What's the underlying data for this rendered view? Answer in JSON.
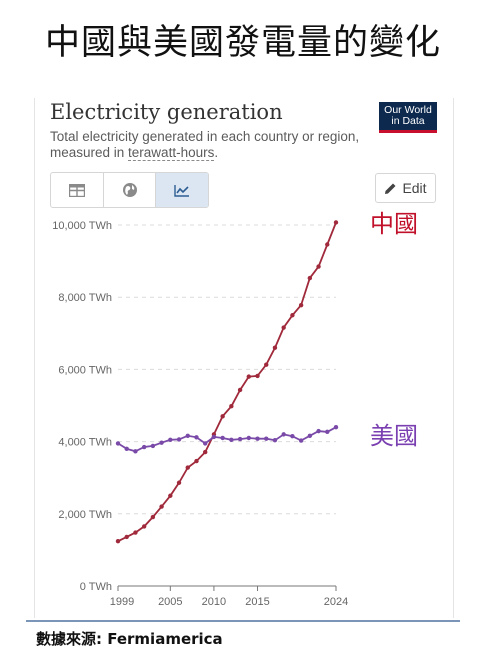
{
  "heading": "中國與美國發電量的變化",
  "chart_card": {
    "title": "Electricity generation",
    "subtitle_prefix": "Total electricity generated in each country or region, measured in ",
    "subtitle_unit": "terawatt-hours",
    "subtitle_suffix": ".",
    "logo_line1": "Our World",
    "logo_line2": "in Data",
    "edit_label": "Edit",
    "tabs": [
      {
        "icon": "table-icon"
      },
      {
        "icon": "globe-icon"
      },
      {
        "icon": "line-chart-icon"
      }
    ]
  },
  "series_labels": {
    "china": "中國",
    "usa": "美國"
  },
  "source": "數據來源: Fermiamerica",
  "colors": {
    "china": "#a02a3b",
    "usa": "#7a4aa8",
    "china_label": "#c0102a",
    "usa_label": "#7a3fb0"
  },
  "chart_data": {
    "type": "line",
    "x_ticks": [
      1999,
      2005,
      2010,
      2015,
      2024
    ],
    "y_ticks": [
      0,
      2000,
      4000,
      6000,
      8000,
      10000
    ],
    "y_tick_labels": [
      "0 TWh",
      "2,000 TWh",
      "4,000 TWh",
      "6,000 TWh",
      "8,000 TWh",
      "10,000 TWh"
    ],
    "xlim": [
      1999,
      2024
    ],
    "ylim": [
      0,
      10000
    ],
    "grid": "horizontal-dashed",
    "series": [
      {
        "key": "china",
        "x": [
          1999,
          2000,
          2001,
          2002,
          2003,
          2004,
          2005,
          2006,
          2007,
          2008,
          2009,
          2010,
          2011,
          2012,
          2013,
          2014,
          2015,
          2016,
          2017,
          2018,
          2019,
          2020,
          2021,
          2022,
          2023,
          2024
        ],
        "values": [
          1240,
          1360,
          1480,
          1650,
          1910,
          2200,
          2500,
          2860,
          3280,
          3460,
          3710,
          4200,
          4700,
          4980,
          5430,
          5800,
          5820,
          6130,
          6600,
          7160,
          7500,
          7780,
          8530,
          8850,
          9460,
          10070
        ]
      },
      {
        "key": "usa",
        "x": [
          1999,
          2000,
          2001,
          2002,
          2003,
          2004,
          2005,
          2006,
          2007,
          2008,
          2009,
          2010,
          2011,
          2012,
          2013,
          2014,
          2015,
          2016,
          2017,
          2018,
          2019,
          2020,
          2021,
          2022,
          2023,
          2024
        ],
        "values": [
          3950,
          3800,
          3730,
          3850,
          3880,
          3970,
          4050,
          4060,
          4160,
          4120,
          3950,
          4130,
          4100,
          4050,
          4070,
          4100,
          4080,
          4080,
          4040,
          4200,
          4150,
          4030,
          4160,
          4290,
          4270,
          4400
        ]
      }
    ]
  }
}
